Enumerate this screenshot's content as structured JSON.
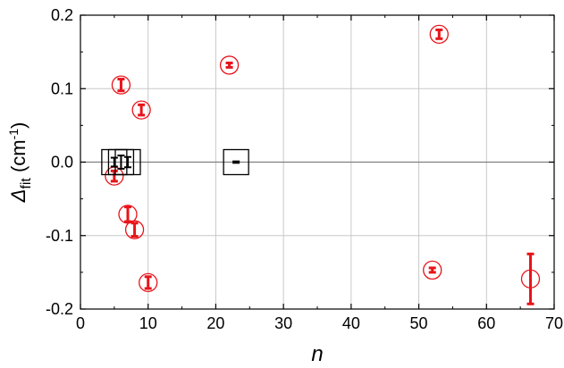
{
  "chart_data": {
    "type": "scatter",
    "title": "",
    "xlabel": "n",
    "ylabel": {
      "main": "Δ",
      "sub": "fit",
      "unit_open": " (cm",
      "unit_sup": "-1",
      "unit_close": ")"
    },
    "xlim": [
      0,
      70
    ],
    "ylim": [
      -0.2,
      0.2
    ],
    "xticks": [
      0,
      10,
      20,
      30,
      40,
      50,
      60,
      70
    ],
    "yticks": [
      -0.2,
      -0.1,
      0.0,
      0.1,
      0.2
    ],
    "xtick_labels": [
      "0",
      "10",
      "20",
      "30",
      "40",
      "50",
      "60",
      "70"
    ],
    "ytick_labels": [
      "-0.2",
      "-0.1",
      "0.0",
      "0.1",
      "0.2"
    ],
    "grid": true,
    "zero_line": true,
    "colors": {
      "series_red": "#e8141a",
      "series_black": "#000000",
      "grid": "#c8c8c8"
    },
    "series": [
      {
        "marker": "circle",
        "color": "#e8141a",
        "points": [
          {
            "x": 5,
            "y": -0.019,
            "err": 0.007
          },
          {
            "x": 6,
            "y": 0.105,
            "err": 0.008
          },
          {
            "x": 7,
            "y": -0.071,
            "err": 0.01
          },
          {
            "x": 8,
            "y": -0.092,
            "err": 0.009
          },
          {
            "x": 9,
            "y": 0.071,
            "err": 0.007
          },
          {
            "x": 10,
            "y": -0.164,
            "err": 0.008
          },
          {
            "x": 22,
            "y": 0.132,
            "err": 0.003
          },
          {
            "x": 52,
            "y": -0.147,
            "err": 0.003
          },
          {
            "x": 53,
            "y": 0.174,
            "err": 0.006
          },
          {
            "x": 66.5,
            "y": -0.159,
            "err": 0.034
          }
        ]
      },
      {
        "marker": "square",
        "color": "#000000",
        "points": [
          {
            "x": 5,
            "y": 0.0,
            "err": 0.006
          },
          {
            "x": 6,
            "y": 0.0,
            "err": 0.009
          },
          {
            "x": 7,
            "y": 0.0,
            "err": 0.007
          },
          {
            "x": 23,
            "y": 0.0,
            "err": 0.001
          }
        ]
      }
    ]
  }
}
